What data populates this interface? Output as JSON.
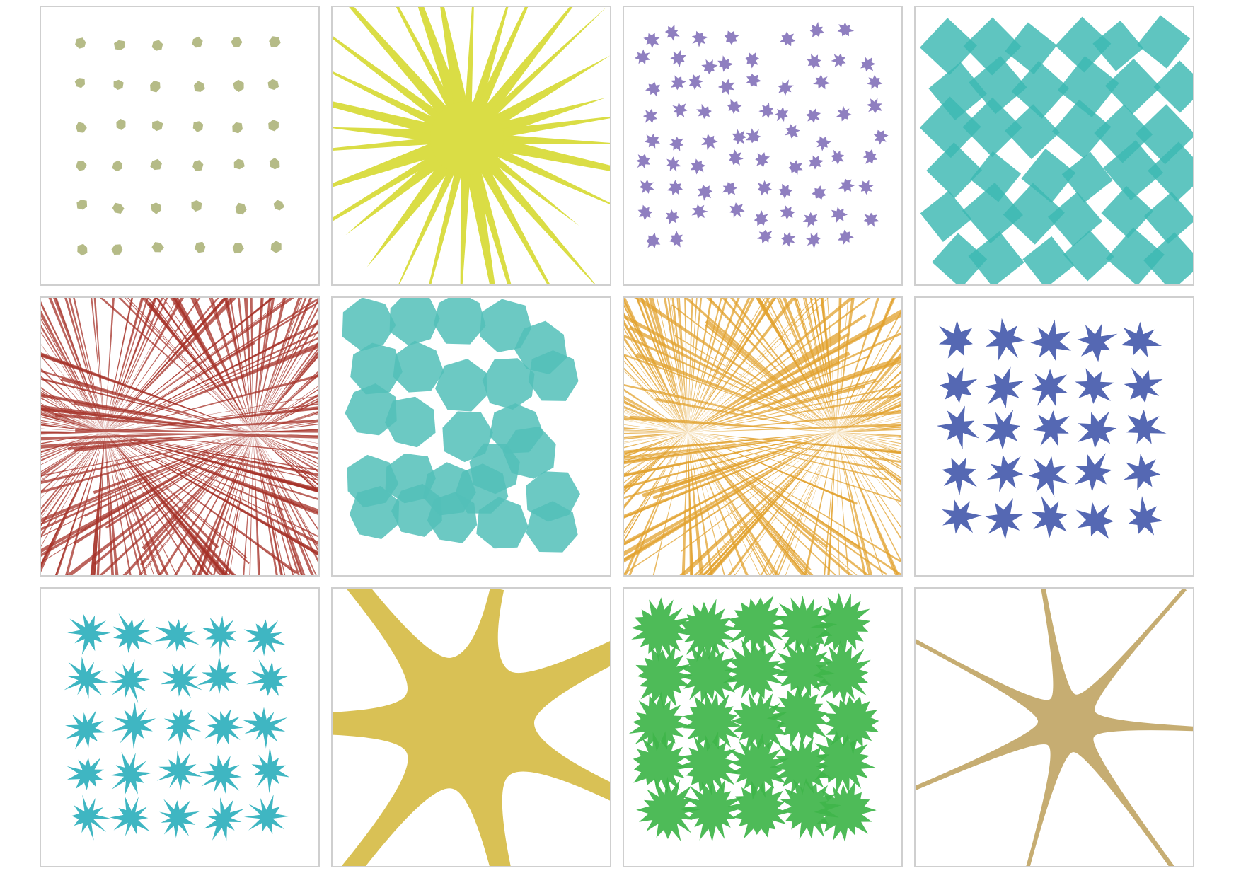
{
  "panels": [
    {
      "id": "p1",
      "pattern": "dot-grid",
      "color": "#b5bb87",
      "shape": "rounded-diamond",
      "points": 6
    },
    {
      "id": "p2",
      "pattern": "radial-burst",
      "color": "#dadd45",
      "spikes": 32
    },
    {
      "id": "p3",
      "pattern": "scattered-stars",
      "color": "#8f7fc0",
      "points": 7
    },
    {
      "id": "p4",
      "pattern": "overlapping-diamonds",
      "color": "#3cb8b2"
    },
    {
      "id": "p5",
      "pattern": "dense-lines",
      "color": "#a63128"
    },
    {
      "id": "p6",
      "pattern": "overlapping-heptagons",
      "color": "#52bfb8"
    },
    {
      "id": "p7",
      "pattern": "dense-lines",
      "color": "#e2a22d"
    },
    {
      "id": "p8",
      "pattern": "star-grid",
      "color": "#5568b3",
      "points": 7
    },
    {
      "id": "p9",
      "pattern": "spiky-star-grid",
      "color": "#3fb6c2",
      "points": 10
    },
    {
      "id": "p10",
      "pattern": "giant-star",
      "color": "#d9c155",
      "arms": 7
    },
    {
      "id": "p11",
      "pattern": "spiky-blob-grid",
      "color": "#3fb54a",
      "points": 16
    },
    {
      "id": "p12",
      "pattern": "giant-star-thin",
      "color": "#c6ad72",
      "arms": 7
    }
  ]
}
